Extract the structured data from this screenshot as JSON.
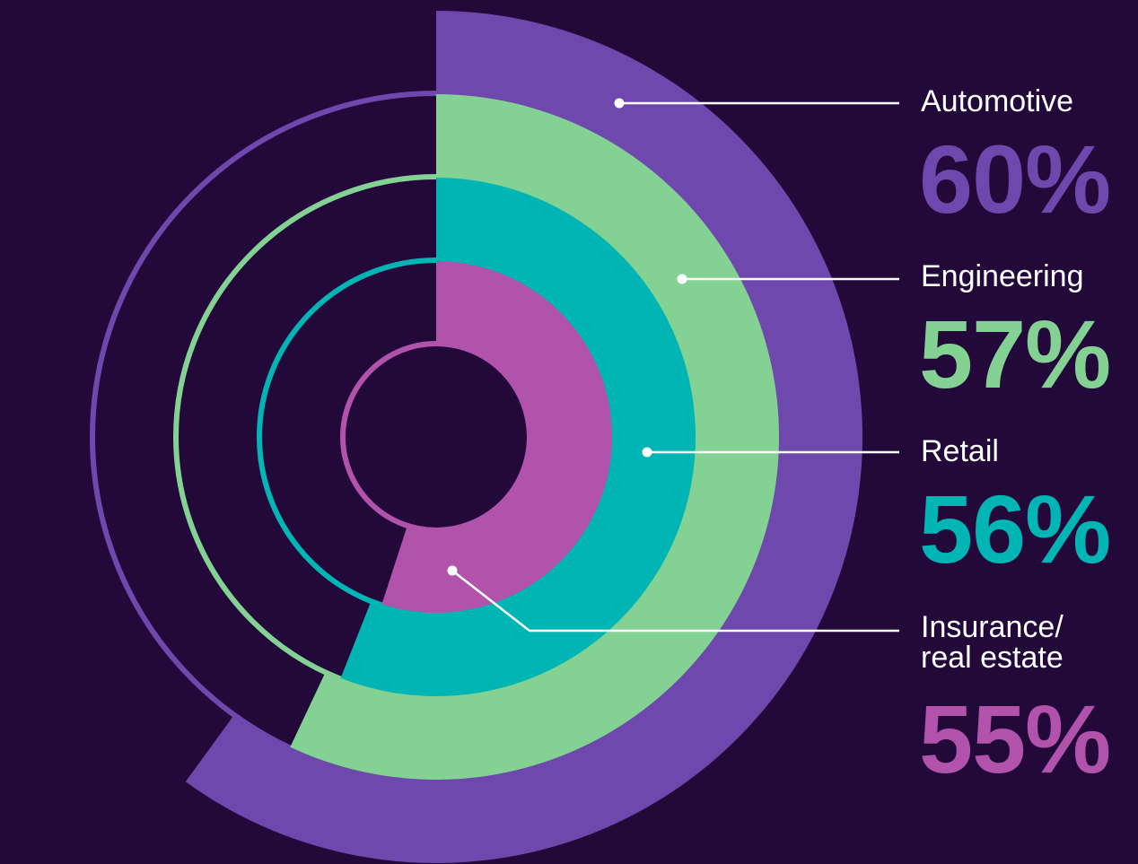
{
  "background": "#22093a",
  "chart_data": {
    "type": "radial-bar",
    "title": "",
    "unit": "%",
    "categories": [
      "Automotive",
      "Engineering",
      "Retail",
      "Insurance/\nreal estate"
    ],
    "values": [
      60,
      57,
      56,
      55
    ],
    "value_labels": [
      "60%",
      "57%",
      "56%",
      "55%"
    ],
    "colors": [
      "#6e48ac",
      "#83d193",
      "#00b5b3",
      "#b152ab"
    ],
    "max": 100,
    "start": "12 o'clock",
    "direction": "clockwise",
    "legend": "right"
  }
}
